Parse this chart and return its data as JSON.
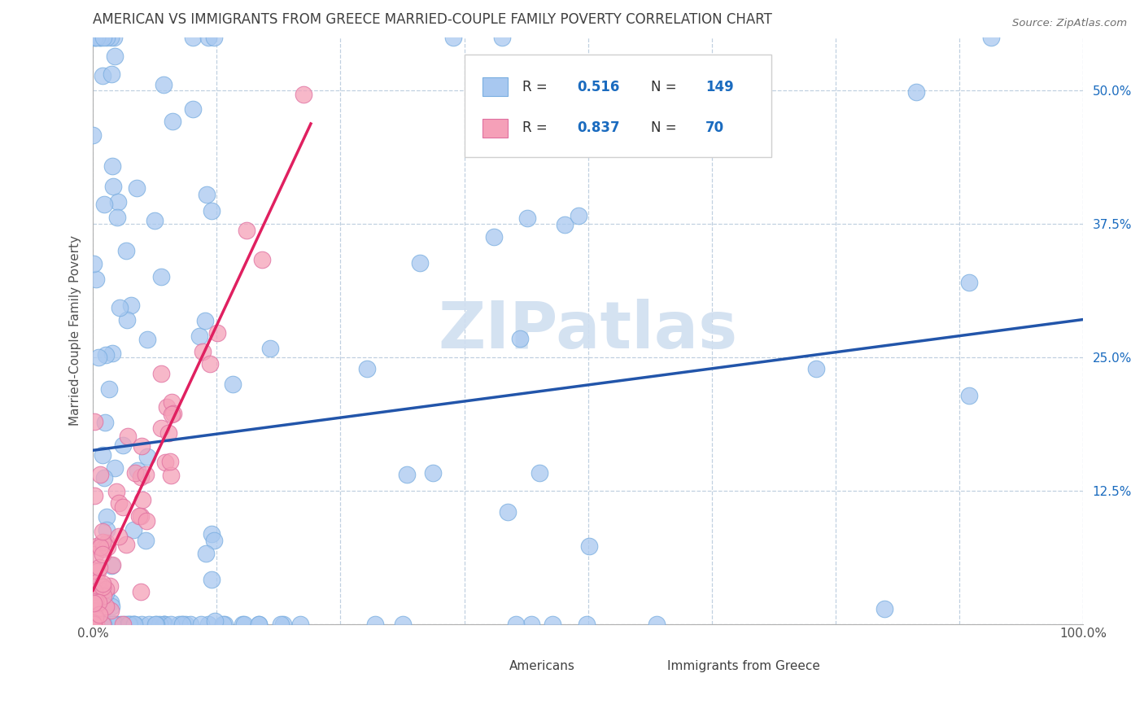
{
  "title": "AMERICAN VS IMMIGRANTS FROM GREECE MARRIED-COUPLE FAMILY POVERTY CORRELATION CHART",
  "source": "Source: ZipAtlas.com",
  "ylabel": "Married-Couple Family Poverty",
  "xlim": [
    0.0,
    1.0
  ],
  "ylim": [
    0.0,
    0.55
  ],
  "x_ticks": [
    0.0,
    0.125,
    0.25,
    0.375,
    0.5,
    0.625,
    0.75,
    0.875,
    1.0
  ],
  "x_tick_labels": [
    "0.0%",
    "",
    "",
    "",
    "",
    "",
    "",
    "",
    "100.0%"
  ],
  "y_ticks": [
    0.0,
    0.125,
    0.25,
    0.375,
    0.5
  ],
  "y_tick_labels": [
    "",
    "12.5%",
    "25.0%",
    "37.5%",
    "50.0%"
  ],
  "americans_R": 0.516,
  "americans_N": 149,
  "greece_R": 0.837,
  "greece_N": 70,
  "americans_color": "#a8c8f0",
  "americans_edge_color": "#7aaee0",
  "americans_line_color": "#2255aa",
  "greece_color": "#f5a0b8",
  "greece_edge_color": "#e070a0",
  "greece_line_color": "#e02060",
  "watermark_color": "#d0dff0",
  "background_color": "#ffffff",
  "grid_color": "#c0d0e0",
  "title_color": "#404040",
  "stat_color": "#1a6bbf",
  "legend_label_color": "#303030"
}
